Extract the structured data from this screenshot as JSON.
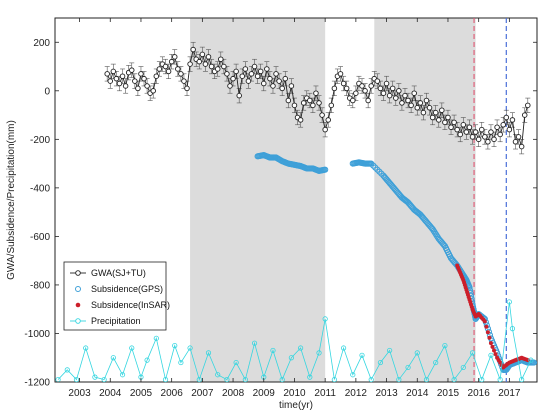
{
  "chart_data": {
    "type": "line",
    "xlabel": "time(yr)",
    "ylabel": "GWA/Subsidence/Precipitation(mm)",
    "xlim": [
      2002.2,
      2017.9
    ],
    "ylim": [
      -1200,
      300
    ],
    "x_ticks": [
      2003,
      2004,
      2005,
      2006,
      2007,
      2008,
      2009,
      2010,
      2011,
      2012,
      2013,
      2014,
      2015,
      2016,
      2017
    ],
    "y_ticks": [
      200,
      0,
      -200,
      -400,
      -600,
      -800,
      -1000,
      -1200
    ],
    "shaded_periods": [
      [
        2006.6,
        2011.0
      ],
      [
        2012.6,
        2015.9
      ]
    ],
    "vertical_lines": [
      {
        "x": 2015.85,
        "color": "#e0607a",
        "style": "dashed"
      },
      {
        "x": 2016.9,
        "color": "#4a6fd9",
        "style": "dashed"
      }
    ],
    "legend": {
      "position": "lower-left",
      "entries": [
        {
          "label": "GWA(SJ+TU)",
          "color": "#222222",
          "marker": "open-circle-line"
        },
        {
          "label": "Subsidence(GPS)",
          "color": "#3fa0d8",
          "marker": "open-circle"
        },
        {
          "label": "Subsidence(InSAR)",
          "color": "#cc1f2a",
          "marker": "filled-circle"
        },
        {
          "label": "Precipitation",
          "color": "#35d6e0",
          "marker": "open-circle-line"
        }
      ]
    },
    "series": [
      {
        "name": "GWA(SJ+TU)",
        "color": "#222222",
        "error_bar": 30,
        "x": [
          2003.9,
          2004.0,
          2004.1,
          2004.2,
          2004.3,
          2004.4,
          2004.5,
          2004.6,
          2004.7,
          2004.8,
          2004.9,
          2005.0,
          2005.1,
          2005.2,
          2005.3,
          2005.4,
          2005.5,
          2005.6,
          2005.7,
          2005.8,
          2005.9,
          2006.0,
          2006.1,
          2006.2,
          2006.3,
          2006.4,
          2006.5,
          2006.6,
          2006.7,
          2006.8,
          2006.9,
          2007.0,
          2007.1,
          2007.2,
          2007.3,
          2007.4,
          2007.5,
          2007.6,
          2007.7,
          2007.8,
          2007.9,
          2008.0,
          2008.1,
          2008.2,
          2008.3,
          2008.4,
          2008.5,
          2008.6,
          2008.7,
          2008.8,
          2008.9,
          2009.0,
          2009.1,
          2009.2,
          2009.3,
          2009.4,
          2009.5,
          2009.6,
          2009.7,
          2009.8,
          2009.9,
          2010.0,
          2010.1,
          2010.2,
          2010.3,
          2010.4,
          2010.5,
          2010.6,
          2010.7,
          2010.8,
          2010.9,
          2011.0,
          2011.1,
          2011.2,
          2011.3,
          2011.4,
          2011.5,
          2011.6,
          2011.7,
          2011.8,
          2011.9,
          2012.0,
          2012.1,
          2012.2,
          2012.3,
          2012.4,
          2012.5,
          2012.6,
          2012.7,
          2012.8,
          2012.9,
          2013.0,
          2013.1,
          2013.2,
          2013.3,
          2013.4,
          2013.5,
          2013.6,
          2013.7,
          2013.8,
          2013.9,
          2014.0,
          2014.1,
          2014.2,
          2014.3,
          2014.4,
          2014.5,
          2014.6,
          2014.7,
          2014.8,
          2014.9,
          2015.0,
          2015.1,
          2015.2,
          2015.3,
          2015.4,
          2015.5,
          2015.6,
          2015.7,
          2015.8,
          2015.9,
          2016.0,
          2016.1,
          2016.2,
          2016.3,
          2016.4,
          2016.5,
          2016.6,
          2016.7,
          2016.8,
          2016.9,
          2017.0,
          2017.1,
          2017.2,
          2017.3,
          2017.4,
          2017.5,
          2017.6
        ],
        "values": [
          70,
          40,
          80,
          50,
          30,
          60,
          20,
          75,
          85,
          40,
          10,
          70,
          50,
          20,
          -10,
          0,
          60,
          90,
          110,
          100,
          80,
          120,
          140,
          90,
          70,
          40,
          10,
          110,
          170,
          130,
          120,
          150,
          110,
          140,
          100,
          80,
          90,
          130,
          100,
          70,
          20,
          50,
          80,
          -20,
          60,
          90,
          40,
          70,
          100,
          60,
          80,
          30,
          90,
          50,
          20,
          70,
          40,
          10,
          50,
          -40,
          20,
          -60,
          -110,
          -120,
          -50,
          -30,
          -40,
          -60,
          -10,
          -50,
          -100,
          -160,
          -120,
          -60,
          10,
          60,
          70,
          30,
          10,
          -30,
          -40,
          -10,
          30,
          20,
          0,
          -40,
          20,
          50,
          40,
          10,
          -10,
          30,
          -20,
          10,
          -30,
          0,
          -50,
          -20,
          -40,
          -60,
          -10,
          -70,
          -50,
          -90,
          -40,
          -70,
          -110,
          -90,
          -120,
          -80,
          -130,
          -110,
          -150,
          -130,
          -160,
          -180,
          -140,
          -170,
          -150,
          -190,
          -170,
          -200,
          -160,
          -190,
          -210,
          -170,
          -200,
          -150,
          -180,
          -140,
          -110,
          -160,
          -120,
          -210,
          -190,
          -230,
          -100,
          -60
        ]
      },
      {
        "name": "Subsidence(GPS)",
        "color": "#3fa0d8",
        "x": [
          2008.8,
          2009.0,
          2009.2,
          2009.4,
          2009.6,
          2009.8,
          2010.0,
          2010.2,
          2010.4,
          2010.6,
          2010.8,
          2011.0,
          2011.9,
          2012.1,
          2012.3,
          2012.5,
          2012.9,
          2013.1,
          2013.3,
          2013.5,
          2013.7,
          2013.9,
          2014.1,
          2014.3,
          2014.5,
          2014.7,
          2014.9,
          2015.1,
          2015.3,
          2015.5,
          2015.6,
          2015.7,
          2015.8,
          2015.9,
          2016.0,
          2016.2,
          2016.4,
          2016.6,
          2016.8,
          2016.9,
          2017.0,
          2017.2,
          2017.4,
          2017.6,
          2017.8
        ],
        "values": [
          -270,
          -265,
          -275,
          -275,
          -290,
          -300,
          -305,
          -310,
          -320,
          -320,
          -330,
          -325,
          -300,
          -295,
          -300,
          -300,
          -350,
          -380,
          -410,
          -440,
          -460,
          -490,
          -510,
          -540,
          -570,
          -610,
          -640,
          -690,
          -720,
          -760,
          -780,
          -810,
          -880,
          -940,
          -920,
          -940,
          -1020,
          -1080,
          -1150,
          -1150,
          -1130,
          -1120,
          -1110,
          -1120,
          -1120
        ]
      },
      {
        "name": "Subsidence(InSAR)",
        "color": "#cc1f2a",
        "x": [
          2015.3,
          2015.4,
          2015.5,
          2015.6,
          2015.7,
          2015.8,
          2015.9,
          2016.0,
          2016.2,
          2016.4,
          2016.6,
          2016.8,
          2017.0,
          2017.2,
          2017.4,
          2017.6
        ],
        "values": [
          -720,
          -750,
          -780,
          -820,
          -860,
          -900,
          -930,
          -920,
          -950,
          -1040,
          -1100,
          -1140,
          -1120,
          -1110,
          -1100,
          -1110
        ]
      },
      {
        "name": "Precipitation",
        "color": "#35d6e0",
        "x": [
          2002.3,
          2002.6,
          2002.9,
          2003.2,
          2003.5,
          2003.8,
          2004.1,
          2004.4,
          2004.7,
          2005.0,
          2005.2,
          2005.5,
          2005.8,
          2006.1,
          2006.3,
          2006.6,
          2006.9,
          2007.2,
          2007.5,
          2007.8,
          2008.1,
          2008.4,
          2008.7,
          2009.0,
          2009.3,
          2009.6,
          2009.9,
          2010.2,
          2010.5,
          2010.8,
          2011.0,
          2011.3,
          2011.6,
          2011.9,
          2012.2,
          2012.5,
          2012.8,
          2013.1,
          2013.4,
          2013.7,
          2014.0,
          2014.3,
          2014.6,
          2014.9,
          2015.2,
          2015.5,
          2015.8,
          2016.1,
          2016.4,
          2016.7,
          2017.0,
          2017.1,
          2017.4,
          2017.7
        ],
        "values": [
          -1190,
          -1150,
          -1190,
          -1060,
          -1180,
          -1190,
          -1100,
          -1170,
          -1060,
          -1180,
          -1110,
          -1020,
          -1190,
          -1050,
          -1120,
          -1060,
          -1190,
          -1080,
          -1170,
          -1190,
          -1120,
          -1190,
          -1040,
          -1180,
          -1070,
          -1190,
          -1100,
          -1060,
          -1180,
          -1080,
          -940,
          -1190,
          -1060,
          -1170,
          -1090,
          -1190,
          -1120,
          -1070,
          -1190,
          -1140,
          -1080,
          -1190,
          -1120,
          -1050,
          -1190,
          -1140,
          -1080,
          -1190,
          -1090,
          -1190,
          -870,
          -980,
          -1190,
          -1110
        ]
      }
    ]
  }
}
